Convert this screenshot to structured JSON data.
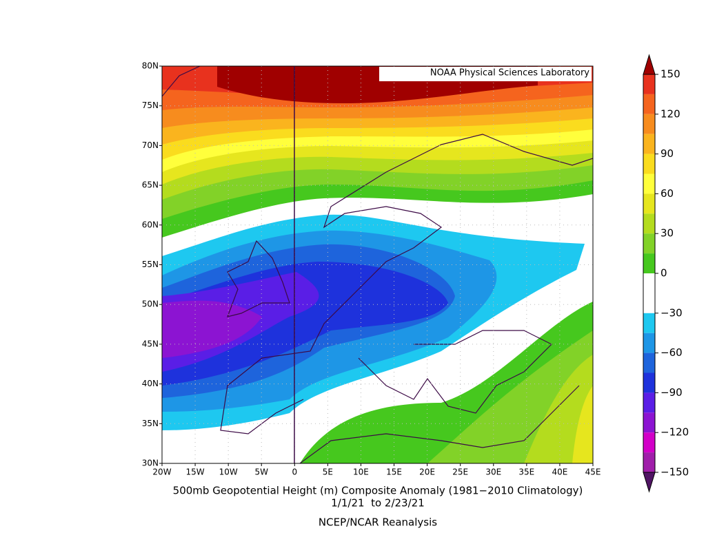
{
  "map": {
    "credit": "NOAA Physical Sciences Laboratory",
    "lat_labels": [
      "80N",
      "75N",
      "70N",
      "65N",
      "60N",
      "55N",
      "50N",
      "45N",
      "40N",
      "35N",
      "30N"
    ],
    "lon_labels": [
      "20W",
      "15W",
      "10W",
      "5W",
      "0",
      "5E",
      "10E",
      "15E",
      "20E",
      "25E",
      "30E",
      "35E",
      "40E",
      "45E"
    ]
  },
  "caption": {
    "line1": "500mb Geopotential Height (m) Composite Anomaly (1981−2010 Climatology)",
    "line2": "1/1/21  to 2/23/21",
    "line3": "NCEP/NCAR Reanalysis"
  },
  "colorbar": {
    "labels": [
      "150",
      "120",
      "90",
      "60",
      "30",
      "0",
      "−30",
      "−60",
      "−90",
      "−120",
      "−150"
    ],
    "colors": [
      "#e8321e",
      "#f5641e",
      "#f78c1e",
      "#fab41e",
      "#fadc1e",
      "#ffff3c",
      "#e6e61e",
      "#b4dc1e",
      "#82d228",
      "#46c81e",
      "#ffffff",
      "#ffffff",
      "#1ec8f0",
      "#1e96e6",
      "#1e64dc",
      "#1e32dc",
      "#5a1ee6",
      "#8c14d2",
      "#d200c8",
      "#a01eaa"
    ],
    "over_color": "#a00000",
    "under_color": "#501464"
  }
}
